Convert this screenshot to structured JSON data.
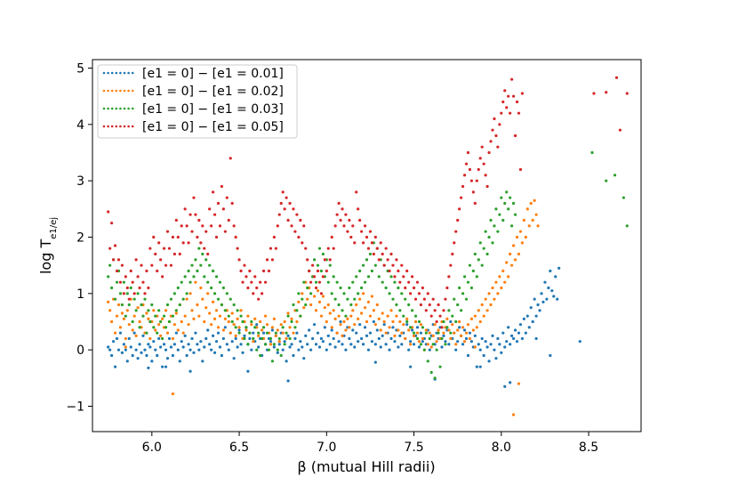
{
  "chart_data": {
    "type": "scatter",
    "xlabel": "β (mutual Hill radii)",
    "ylabel_main": "log T",
    "ylabel_sub": "e1/ej",
    "xlim": [
      5.66,
      8.8
    ],
    "ylim": [
      -1.45,
      5.15
    ],
    "xticks": [
      "6.0",
      "6.5",
      "7.0",
      "7.5",
      "8.0",
      "8.5"
    ],
    "yticks": [
      "−1",
      "0",
      "1",
      "2",
      "3",
      "4",
      "5"
    ],
    "xtick_values": [
      6.0,
      6.5,
      7.0,
      7.5,
      8.0,
      8.5
    ],
    "ytick_values": [
      -1,
      0,
      1,
      2,
      3,
      4,
      5
    ],
    "legend_position": "top-left",
    "grid": false,
    "x_start": 5.75,
    "x_step": 0.01,
    "series": [
      {
        "name": "[e1 = 0] − [e1 = 0.01]",
        "color": "#1f77b4",
        "values": [
          0.05,
          0.0,
          -0.1,
          0.15,
          -0.3,
          0.2,
          0.0,
          0.3,
          -0.05,
          0.1,
          0.0,
          -0.2,
          0.2,
          0.05,
          -0.1,
          0.3,
          0.0,
          -0.15,
          0.1,
          -0.05,
          0.25,
          0.0,
          -0.1,
          0.1,
          0.05,
          -0.2,
          0.15,
          0.0,
          -0.1,
          0.2,
          0.05,
          -0.3,
          0.1,
          0.0,
          -0.15,
          0.2,
          0.05,
          -0.1,
          0.1,
          0.3,
          0.0,
          -0.2,
          0.15,
          0.05,
          0.25,
          -0.1,
          0.1,
          0.0,
          0.2,
          -0.05,
          0.3,
          0.1,
          0.0,
          0.15,
          -0.2,
          0.05,
          0.2,
          0.35,
          0.1,
          0.0,
          0.25,
          -0.05,
          0.15,
          0.3,
          0.05,
          -0.1,
          0.2,
          0.4,
          0.1,
          0.0,
          0.3,
          0.15,
          -0.15,
          0.2,
          0.05,
          0.35,
          0.1,
          -0.05,
          0.25,
          0.4,
          0.1,
          0.2,
          0.0,
          0.3,
          0.15,
          0.45,
          0.05,
          0.2,
          -0.1,
          0.3,
          0.1,
          0.0,
          0.2,
          0.15,
          0.35,
          0.05,
          0.25,
          -0.05,
          0.1,
          0.3,
          0.0,
          0.15,
          -0.2,
          0.25,
          0.05,
          0.1,
          -0.1,
          0.2,
          0.3,
          0.0,
          0.15,
          0.05,
          -0.15,
          0.25,
          0.1,
          0.35,
          0.0,
          0.2,
          0.45,
          0.1,
          0.3,
          0.05,
          0.2,
          0.15,
          0.4,
          0.0,
          0.25,
          0.1,
          0.35,
          0.2,
          0.05,
          0.3,
          0.15,
          0.5,
          0.1,
          0.25,
          0.0,
          0.4,
          0.2,
          0.1,
          0.35,
          0.05,
          0.3,
          0.15,
          0.45,
          0.2,
          0.1,
          0.4,
          0.25,
          0.0,
          0.3,
          0.15,
          0.5,
          0.1,
          0.35,
          0.2,
          0.05,
          0.25,
          0.45,
          0.1,
          0.3,
          0.0,
          0.2,
          0.4,
          0.15,
          0.35,
          0.05,
          0.25,
          0.1,
          0.3,
          0.2,
          0.45,
          0.0,
          0.15,
          0.35,
          0.1,
          0.25,
          0.4,
          0.05,
          0.3,
          0.15,
          0.2,
          0.1,
          0.35,
          0.0,
          0.25,
          0.45,
          0.1,
          0.3,
          0.2,
          0.4,
          0.05,
          0.25,
          0.15,
          0.35,
          0.1,
          0.5,
          0.2,
          0.3,
          0.0,
          0.15,
          0.4,
          0.25,
          0.1,
          0.35,
          0.2,
          -0.1,
          0.3,
          0.15,
          0.05,
          0.25,
          -0.3,
          0.1,
          0.0,
          0.2,
          -0.1,
          0.15,
          0.05,
          -0.2,
          0.1,
          0.25,
          0.0,
          -0.15,
          0.2,
          0.1,
          -0.05,
          0.3,
          0.05,
          0.15,
          0.4,
          0.1,
          0.25,
          0.2,
          0.35,
          0.15,
          0.3,
          0.45,
          0.2,
          0.55,
          0.3,
          0.6,
          0.4,
          0.75,
          0.5,
          0.9,
          0.6,
          0.8,
          0.7,
          1.0,
          0.85,
          1.2,
          0.9,
          1.1,
          1.4,
          1.05,
          0.95,
          1.3,
          0.9,
          1.45
        ],
        "points": [
          [
            5.98,
            -0.32
          ],
          [
            6.08,
            -0.3
          ],
          [
            6.22,
            -0.38
          ],
          [
            6.55,
            -0.38
          ],
          [
            6.78,
            -0.55
          ],
          [
            7.28,
            -0.22
          ],
          [
            7.48,
            -0.3
          ],
          [
            7.62,
            -0.52
          ],
          [
            7.88,
            -0.3
          ],
          [
            8.02,
            -0.65
          ],
          [
            8.05,
            -0.58
          ],
          [
            8.2,
            0.2
          ],
          [
            8.28,
            -0.1
          ],
          [
            8.45,
            0.15
          ]
        ]
      },
      {
        "name": "[e1 = 0] − [e1 = 0.02]",
        "color": "#ff7f0e",
        "values": [
          0.85,
          0.7,
          0.5,
          0.9,
          0.3,
          0.6,
          0.8,
          0.4,
          0.65,
          0.55,
          0.2,
          0.7,
          0.45,
          0.9,
          0.35,
          0.6,
          0.25,
          0.75,
          0.5,
          0.4,
          0.8,
          0.3,
          0.65,
          0.55,
          0.2,
          0.5,
          0.7,
          0.35,
          0.6,
          0.45,
          0.25,
          0.55,
          0.4,
          0.7,
          0.3,
          0.5,
          0.6,
          0.2,
          0.45,
          0.65,
          0.35,
          0.8,
          0.5,
          0.3,
          0.6,
          0.9,
          0.45,
          1.0,
          0.7,
          0.55,
          1.2,
          0.8,
          0.6,
          1.1,
          0.9,
          0.5,
          0.75,
          1.0,
          0.65,
          0.45,
          0.85,
          0.55,
          0.7,
          0.4,
          0.6,
          0.8,
          0.35,
          0.55,
          0.7,
          0.5,
          0.3,
          0.65,
          0.45,
          0.25,
          0.55,
          0.4,
          0.7,
          0.2,
          0.5,
          0.35,
          0.6,
          0.3,
          0.45,
          0.15,
          0.55,
          0.4,
          0.25,
          0.5,
          0.35,
          0.2,
          0.6,
          0.45,
          0.3,
          0.1,
          0.4,
          0.55,
          0.25,
          0.35,
          0.15,
          0.45,
          0.3,
          0.5,
          0.2,
          0.65,
          0.4,
          0.55,
          0.3,
          0.7,
          0.5,
          0.85,
          0.6,
          1.0,
          0.75,
          1.2,
          0.9,
          1.1,
          0.8,
          1.3,
          0.95,
          0.7,
          1.05,
          0.85,
          0.6,
          0.95,
          0.75,
          0.5,
          0.8,
          0.65,
          0.4,
          0.7,
          0.55,
          0.3,
          0.6,
          0.45,
          0.25,
          0.5,
          0.35,
          0.55,
          0.4,
          0.6,
          0.7,
          0.45,
          0.8,
          0.55,
          0.9,
          0.65,
          1.0,
          0.75,
          0.5,
          0.85,
          0.6,
          0.95,
          0.7,
          0.45,
          0.8,
          0.55,
          0.35,
          0.65,
          0.5,
          0.3,
          0.6,
          0.4,
          0.7,
          0.5,
          0.25,
          0.6,
          0.35,
          0.5,
          0.3,
          0.45,
          0.2,
          0.55,
          0.35,
          0.1,
          0.4,
          0.25,
          0.5,
          0.3,
          0.15,
          0.45,
          0.2,
          0.0,
          0.35,
          0.1,
          0.3,
          0.05,
          0.25,
          0.45,
          0.15,
          0.35,
          0.2,
          0.5,
          0.3,
          0.4,
          0.55,
          0.35,
          0.2,
          0.45,
          0.3,
          0.1,
          0.35,
          0.5,
          0.25,
          0.4,
          0.15,
          0.3,
          0.45,
          0.2,
          0.55,
          0.35,
          0.6,
          0.4,
          0.7,
          0.5,
          0.8,
          0.6,
          0.9,
          0.7,
          1.0,
          0.8,
          1.1,
          0.9,
          1.2,
          1.0,
          1.3,
          1.1,
          1.4,
          1.2,
          1.55,
          1.3,
          1.7,
          1.5,
          1.85,
          1.6,
          2.0,
          1.7,
          2.1,
          1.9,
          2.3,
          2.0,
          2.5,
          2.2,
          2.6,
          2.3,
          2.65,
          2.4,
          2.2
        ],
        "points": [
          [
            6.12,
            -0.78
          ],
          [
            8.07,
            -1.15
          ],
          [
            8.1,
            -0.6
          ],
          [
            7.85,
            0.05
          ],
          [
            5.85,
            0.05
          ]
        ]
      },
      {
        "name": "[e1 = 0] − [e1 = 0.03]",
        "color": "#2ca02c",
        "values": [
          1.3,
          1.5,
          1.1,
          1.6,
          0.9,
          1.2,
          1.4,
          1.0,
          0.8,
          1.2,
          0.6,
          1.0,
          0.8,
          1.1,
          0.5,
          0.9,
          0.7,
          1.0,
          0.4,
          0.8,
          0.6,
          0.9,
          0.3,
          0.7,
          0.5,
          0.8,
          0.4,
          0.6,
          0.3,
          0.7,
          0.5,
          0.2,
          0.6,
          0.4,
          0.8,
          0.5,
          0.9,
          0.6,
          1.0,
          0.7,
          1.1,
          0.8,
          1.2,
          0.9,
          1.3,
          1.0,
          1.4,
          1.2,
          1.5,
          1.3,
          1.6,
          1.4,
          1.8,
          1.5,
          1.7,
          1.3,
          1.6,
          1.2,
          1.5,
          1.1,
          1.4,
          1.0,
          1.3,
          0.9,
          1.2,
          0.8,
          1.1,
          0.7,
          1.0,
          0.6,
          0.9,
          0.5,
          0.8,
          0.4,
          0.7,
          0.3,
          0.6,
          0.5,
          0.2,
          0.4,
          0.1,
          0.3,
          0.5,
          0.2,
          0.4,
          0.0,
          0.3,
          -0.1,
          0.2,
          0.4,
          0.1,
          0.3,
          0.0,
          0.2,
          -0.2,
          0.1,
          0.3,
          0.0,
          0.2,
          -0.1,
          0.4,
          0.1,
          0.3,
          0.6,
          0.2,
          0.5,
          0.8,
          0.4,
          0.7,
          1.0,
          0.6,
          0.9,
          1.2,
          0.8,
          1.1,
          1.4,
          1.0,
          1.3,
          1.6,
          1.2,
          1.5,
          1.8,
          1.4,
          1.7,
          1.3,
          1.6,
          1.2,
          1.5,
          1.0,
          1.3,
          0.9,
          1.2,
          0.8,
          1.1,
          0.7,
          1.0,
          0.6,
          0.9,
          1.1,
          0.8,
          1.2,
          0.9,
          1.3,
          1.0,
          1.4,
          1.1,
          1.5,
          1.2,
          1.6,
          1.3,
          1.7,
          1.4,
          1.9,
          1.5,
          1.8,
          1.3,
          1.6,
          1.2,
          1.5,
          1.1,
          1.4,
          1.0,
          1.3,
          0.9,
          1.2,
          0.8,
          1.1,
          0.7,
          1.0,
          0.6,
          0.9,
          0.5,
          0.8,
          0.4,
          0.7,
          0.3,
          0.6,
          0.2,
          0.5,
          0.1,
          0.4,
          0.0,
          0.3,
          -0.2,
          0.2,
          -0.4,
          0.1,
          -0.5,
          0.0,
          0.3,
          -0.3,
          0.2,
          0.5,
          0.1,
          0.4,
          0.7,
          0.3,
          0.6,
          0.9,
          0.5,
          0.8,
          1.1,
          0.7,
          1.0,
          1.3,
          0.9,
          1.2,
          1.5,
          1.1,
          1.4,
          1.7,
          1.3,
          1.6,
          1.9,
          1.5,
          1.8,
          2.1,
          1.7,
          2.0,
          2.3,
          1.9,
          2.2,
          2.5,
          2.1,
          2.4,
          2.7,
          2.3,
          2.6,
          2.8,
          2.5,
          2.7,
          2.2,
          2.6,
          2.4
        ],
        "points": [
          [
            8.52,
            3.5
          ],
          [
            8.6,
            3.0
          ],
          [
            8.65,
            3.1
          ],
          [
            8.7,
            2.7
          ],
          [
            8.72,
            2.2
          ]
        ]
      },
      {
        "name": "[e1 = 0] − [e1 = 0.05]",
        "color": "#d62728",
        "values": [
          2.45,
          1.8,
          2.25,
          1.6,
          1.85,
          1.4,
          1.6,
          1.2,
          1.5,
          1.0,
          1.3,
          1.1,
          0.9,
          1.4,
          1.2,
          1.0,
          1.6,
          1.3,
          1.1,
          1.5,
          1.2,
          1.0,
          1.4,
          1.1,
          1.8,
          1.5,
          2.0,
          1.7,
          1.4,
          1.9,
          1.6,
          1.3,
          1.8,
          1.5,
          2.1,
          1.8,
          1.5,
          2.0,
          1.7,
          2.3,
          2.0,
          1.7,
          2.2,
          1.9,
          2.5,
          2.2,
          1.9,
          2.4,
          2.1,
          2.7,
          2.4,
          2.0,
          2.3,
          1.9,
          2.2,
          1.8,
          2.1,
          1.7,
          2.5,
          2.2,
          2.8,
          2.4,
          2.0,
          2.6,
          2.2,
          2.9,
          2.5,
          2.1,
          2.7,
          2.3,
          3.4,
          2.6,
          2.2,
          2.0,
          1.8,
          1.6,
          1.4,
          1.2,
          1.5,
          1.3,
          1.1,
          1.4,
          1.2,
          1.0,
          1.3,
          1.1,
          0.9,
          1.2,
          1.0,
          1.4,
          1.2,
          1.6,
          1.4,
          1.8,
          1.6,
          2.0,
          1.8,
          2.2,
          2.4,
          2.6,
          2.8,
          2.5,
          2.7,
          2.3,
          2.6,
          2.2,
          2.5,
          2.1,
          2.4,
          2.0,
          2.3,
          1.9,
          2.2,
          1.8,
          1.6,
          1.4,
          1.2,
          1.5,
          1.3,
          1.1,
          1.4,
          1.2,
          1.0,
          1.3,
          1.6,
          1.4,
          1.8,
          1.6,
          2.0,
          1.8,
          2.2,
          2.4,
          2.6,
          2.3,
          2.5,
          2.2,
          2.4,
          2.1,
          2.3,
          2.0,
          2.2,
          1.9,
          2.8,
          2.5,
          2.3,
          2.1,
          1.9,
          2.2,
          2.0,
          1.8,
          2.1,
          1.9,
          1.7,
          2.0,
          1.8,
          1.6,
          1.9,
          1.7,
          1.5,
          1.8,
          1.6,
          1.4,
          1.7,
          1.5,
          1.3,
          1.6,
          1.4,
          1.2,
          1.5,
          1.3,
          1.1,
          1.4,
          1.2,
          1.0,
          1.3,
          1.1,
          0.9,
          1.2,
          1.0,
          0.8,
          1.1,
          0.9,
          0.7,
          1.0,
          0.8,
          0.6,
          0.9,
          0.7,
          0.5,
          0.8,
          0.6,
          0.4,
          0.7,
          0.9,
          1.1,
          1.3,
          1.5,
          1.7,
          1.9,
          2.1,
          2.3,
          2.5,
          2.7,
          2.9,
          3.1,
          3.3,
          3.5,
          3.2,
          3.0,
          2.8,
          2.6,
          3.0,
          3.2,
          3.4,
          3.6,
          3.3,
          3.1,
          2.9,
          3.5,
          3.7,
          3.9,
          4.1,
          3.8,
          3.6,
          4.0,
          4.2,
          4.4,
          4.6,
          4.3,
          4.5,
          4.2,
          4.8,
          4.5,
          3.8,
          4.4,
          4.2,
          3.2,
          4.55
        ],
        "points": [
          [
            8.66,
            4.83
          ],
          [
            8.53,
            4.55
          ],
          [
            8.6,
            4.57
          ],
          [
            8.72,
            4.55
          ],
          [
            8.68,
            3.9
          ]
        ]
      }
    ]
  }
}
